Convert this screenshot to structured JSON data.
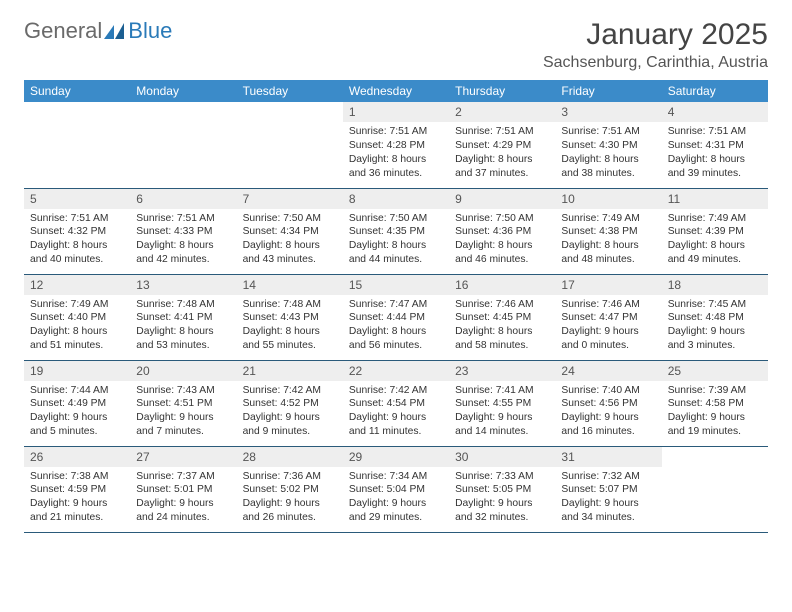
{
  "logo": {
    "general": "General",
    "blue": "Blue"
  },
  "title": "January 2025",
  "location": "Sachsenburg, Carinthia, Austria",
  "colors": {
    "header_bg": "#3b8bc9",
    "header_text": "#ffffff",
    "daynum_bg": "#eeeeee",
    "row_border": "#2a5a7a",
    "logo_gray": "#6a6a6a",
    "logo_blue": "#2a7ab8"
  },
  "weekdays": [
    "Sunday",
    "Monday",
    "Tuesday",
    "Wednesday",
    "Thursday",
    "Friday",
    "Saturday"
  ],
  "weeks": [
    [
      {
        "day": "",
        "lines": []
      },
      {
        "day": "",
        "lines": []
      },
      {
        "day": "",
        "lines": []
      },
      {
        "day": "1",
        "lines": [
          "Sunrise: 7:51 AM",
          "Sunset: 4:28 PM",
          "Daylight: 8 hours",
          "and 36 minutes."
        ]
      },
      {
        "day": "2",
        "lines": [
          "Sunrise: 7:51 AM",
          "Sunset: 4:29 PM",
          "Daylight: 8 hours",
          "and 37 minutes."
        ]
      },
      {
        "day": "3",
        "lines": [
          "Sunrise: 7:51 AM",
          "Sunset: 4:30 PM",
          "Daylight: 8 hours",
          "and 38 minutes."
        ]
      },
      {
        "day": "4",
        "lines": [
          "Sunrise: 7:51 AM",
          "Sunset: 4:31 PM",
          "Daylight: 8 hours",
          "and 39 minutes."
        ]
      }
    ],
    [
      {
        "day": "5",
        "lines": [
          "Sunrise: 7:51 AM",
          "Sunset: 4:32 PM",
          "Daylight: 8 hours",
          "and 40 minutes."
        ]
      },
      {
        "day": "6",
        "lines": [
          "Sunrise: 7:51 AM",
          "Sunset: 4:33 PM",
          "Daylight: 8 hours",
          "and 42 minutes."
        ]
      },
      {
        "day": "7",
        "lines": [
          "Sunrise: 7:50 AM",
          "Sunset: 4:34 PM",
          "Daylight: 8 hours",
          "and 43 minutes."
        ]
      },
      {
        "day": "8",
        "lines": [
          "Sunrise: 7:50 AM",
          "Sunset: 4:35 PM",
          "Daylight: 8 hours",
          "and 44 minutes."
        ]
      },
      {
        "day": "9",
        "lines": [
          "Sunrise: 7:50 AM",
          "Sunset: 4:36 PM",
          "Daylight: 8 hours",
          "and 46 minutes."
        ]
      },
      {
        "day": "10",
        "lines": [
          "Sunrise: 7:49 AM",
          "Sunset: 4:38 PM",
          "Daylight: 8 hours",
          "and 48 minutes."
        ]
      },
      {
        "day": "11",
        "lines": [
          "Sunrise: 7:49 AM",
          "Sunset: 4:39 PM",
          "Daylight: 8 hours",
          "and 49 minutes."
        ]
      }
    ],
    [
      {
        "day": "12",
        "lines": [
          "Sunrise: 7:49 AM",
          "Sunset: 4:40 PM",
          "Daylight: 8 hours",
          "and 51 minutes."
        ]
      },
      {
        "day": "13",
        "lines": [
          "Sunrise: 7:48 AM",
          "Sunset: 4:41 PM",
          "Daylight: 8 hours",
          "and 53 minutes."
        ]
      },
      {
        "day": "14",
        "lines": [
          "Sunrise: 7:48 AM",
          "Sunset: 4:43 PM",
          "Daylight: 8 hours",
          "and 55 minutes."
        ]
      },
      {
        "day": "15",
        "lines": [
          "Sunrise: 7:47 AM",
          "Sunset: 4:44 PM",
          "Daylight: 8 hours",
          "and 56 minutes."
        ]
      },
      {
        "day": "16",
        "lines": [
          "Sunrise: 7:46 AM",
          "Sunset: 4:45 PM",
          "Daylight: 8 hours",
          "and 58 minutes."
        ]
      },
      {
        "day": "17",
        "lines": [
          "Sunrise: 7:46 AM",
          "Sunset: 4:47 PM",
          "Daylight: 9 hours",
          "and 0 minutes."
        ]
      },
      {
        "day": "18",
        "lines": [
          "Sunrise: 7:45 AM",
          "Sunset: 4:48 PM",
          "Daylight: 9 hours",
          "and 3 minutes."
        ]
      }
    ],
    [
      {
        "day": "19",
        "lines": [
          "Sunrise: 7:44 AM",
          "Sunset: 4:49 PM",
          "Daylight: 9 hours",
          "and 5 minutes."
        ]
      },
      {
        "day": "20",
        "lines": [
          "Sunrise: 7:43 AM",
          "Sunset: 4:51 PM",
          "Daylight: 9 hours",
          "and 7 minutes."
        ]
      },
      {
        "day": "21",
        "lines": [
          "Sunrise: 7:42 AM",
          "Sunset: 4:52 PM",
          "Daylight: 9 hours",
          "and 9 minutes."
        ]
      },
      {
        "day": "22",
        "lines": [
          "Sunrise: 7:42 AM",
          "Sunset: 4:54 PM",
          "Daylight: 9 hours",
          "and 11 minutes."
        ]
      },
      {
        "day": "23",
        "lines": [
          "Sunrise: 7:41 AM",
          "Sunset: 4:55 PM",
          "Daylight: 9 hours",
          "and 14 minutes."
        ]
      },
      {
        "day": "24",
        "lines": [
          "Sunrise: 7:40 AM",
          "Sunset: 4:56 PM",
          "Daylight: 9 hours",
          "and 16 minutes."
        ]
      },
      {
        "day": "25",
        "lines": [
          "Sunrise: 7:39 AM",
          "Sunset: 4:58 PM",
          "Daylight: 9 hours",
          "and 19 minutes."
        ]
      }
    ],
    [
      {
        "day": "26",
        "lines": [
          "Sunrise: 7:38 AM",
          "Sunset: 4:59 PM",
          "Daylight: 9 hours",
          "and 21 minutes."
        ]
      },
      {
        "day": "27",
        "lines": [
          "Sunrise: 7:37 AM",
          "Sunset: 5:01 PM",
          "Daylight: 9 hours",
          "and 24 minutes."
        ]
      },
      {
        "day": "28",
        "lines": [
          "Sunrise: 7:36 AM",
          "Sunset: 5:02 PM",
          "Daylight: 9 hours",
          "and 26 minutes."
        ]
      },
      {
        "day": "29",
        "lines": [
          "Sunrise: 7:34 AM",
          "Sunset: 5:04 PM",
          "Daylight: 9 hours",
          "and 29 minutes."
        ]
      },
      {
        "day": "30",
        "lines": [
          "Sunrise: 7:33 AM",
          "Sunset: 5:05 PM",
          "Daylight: 9 hours",
          "and 32 minutes."
        ]
      },
      {
        "day": "31",
        "lines": [
          "Sunrise: 7:32 AM",
          "Sunset: 5:07 PM",
          "Daylight: 9 hours",
          "and 34 minutes."
        ]
      },
      {
        "day": "",
        "lines": []
      }
    ]
  ]
}
